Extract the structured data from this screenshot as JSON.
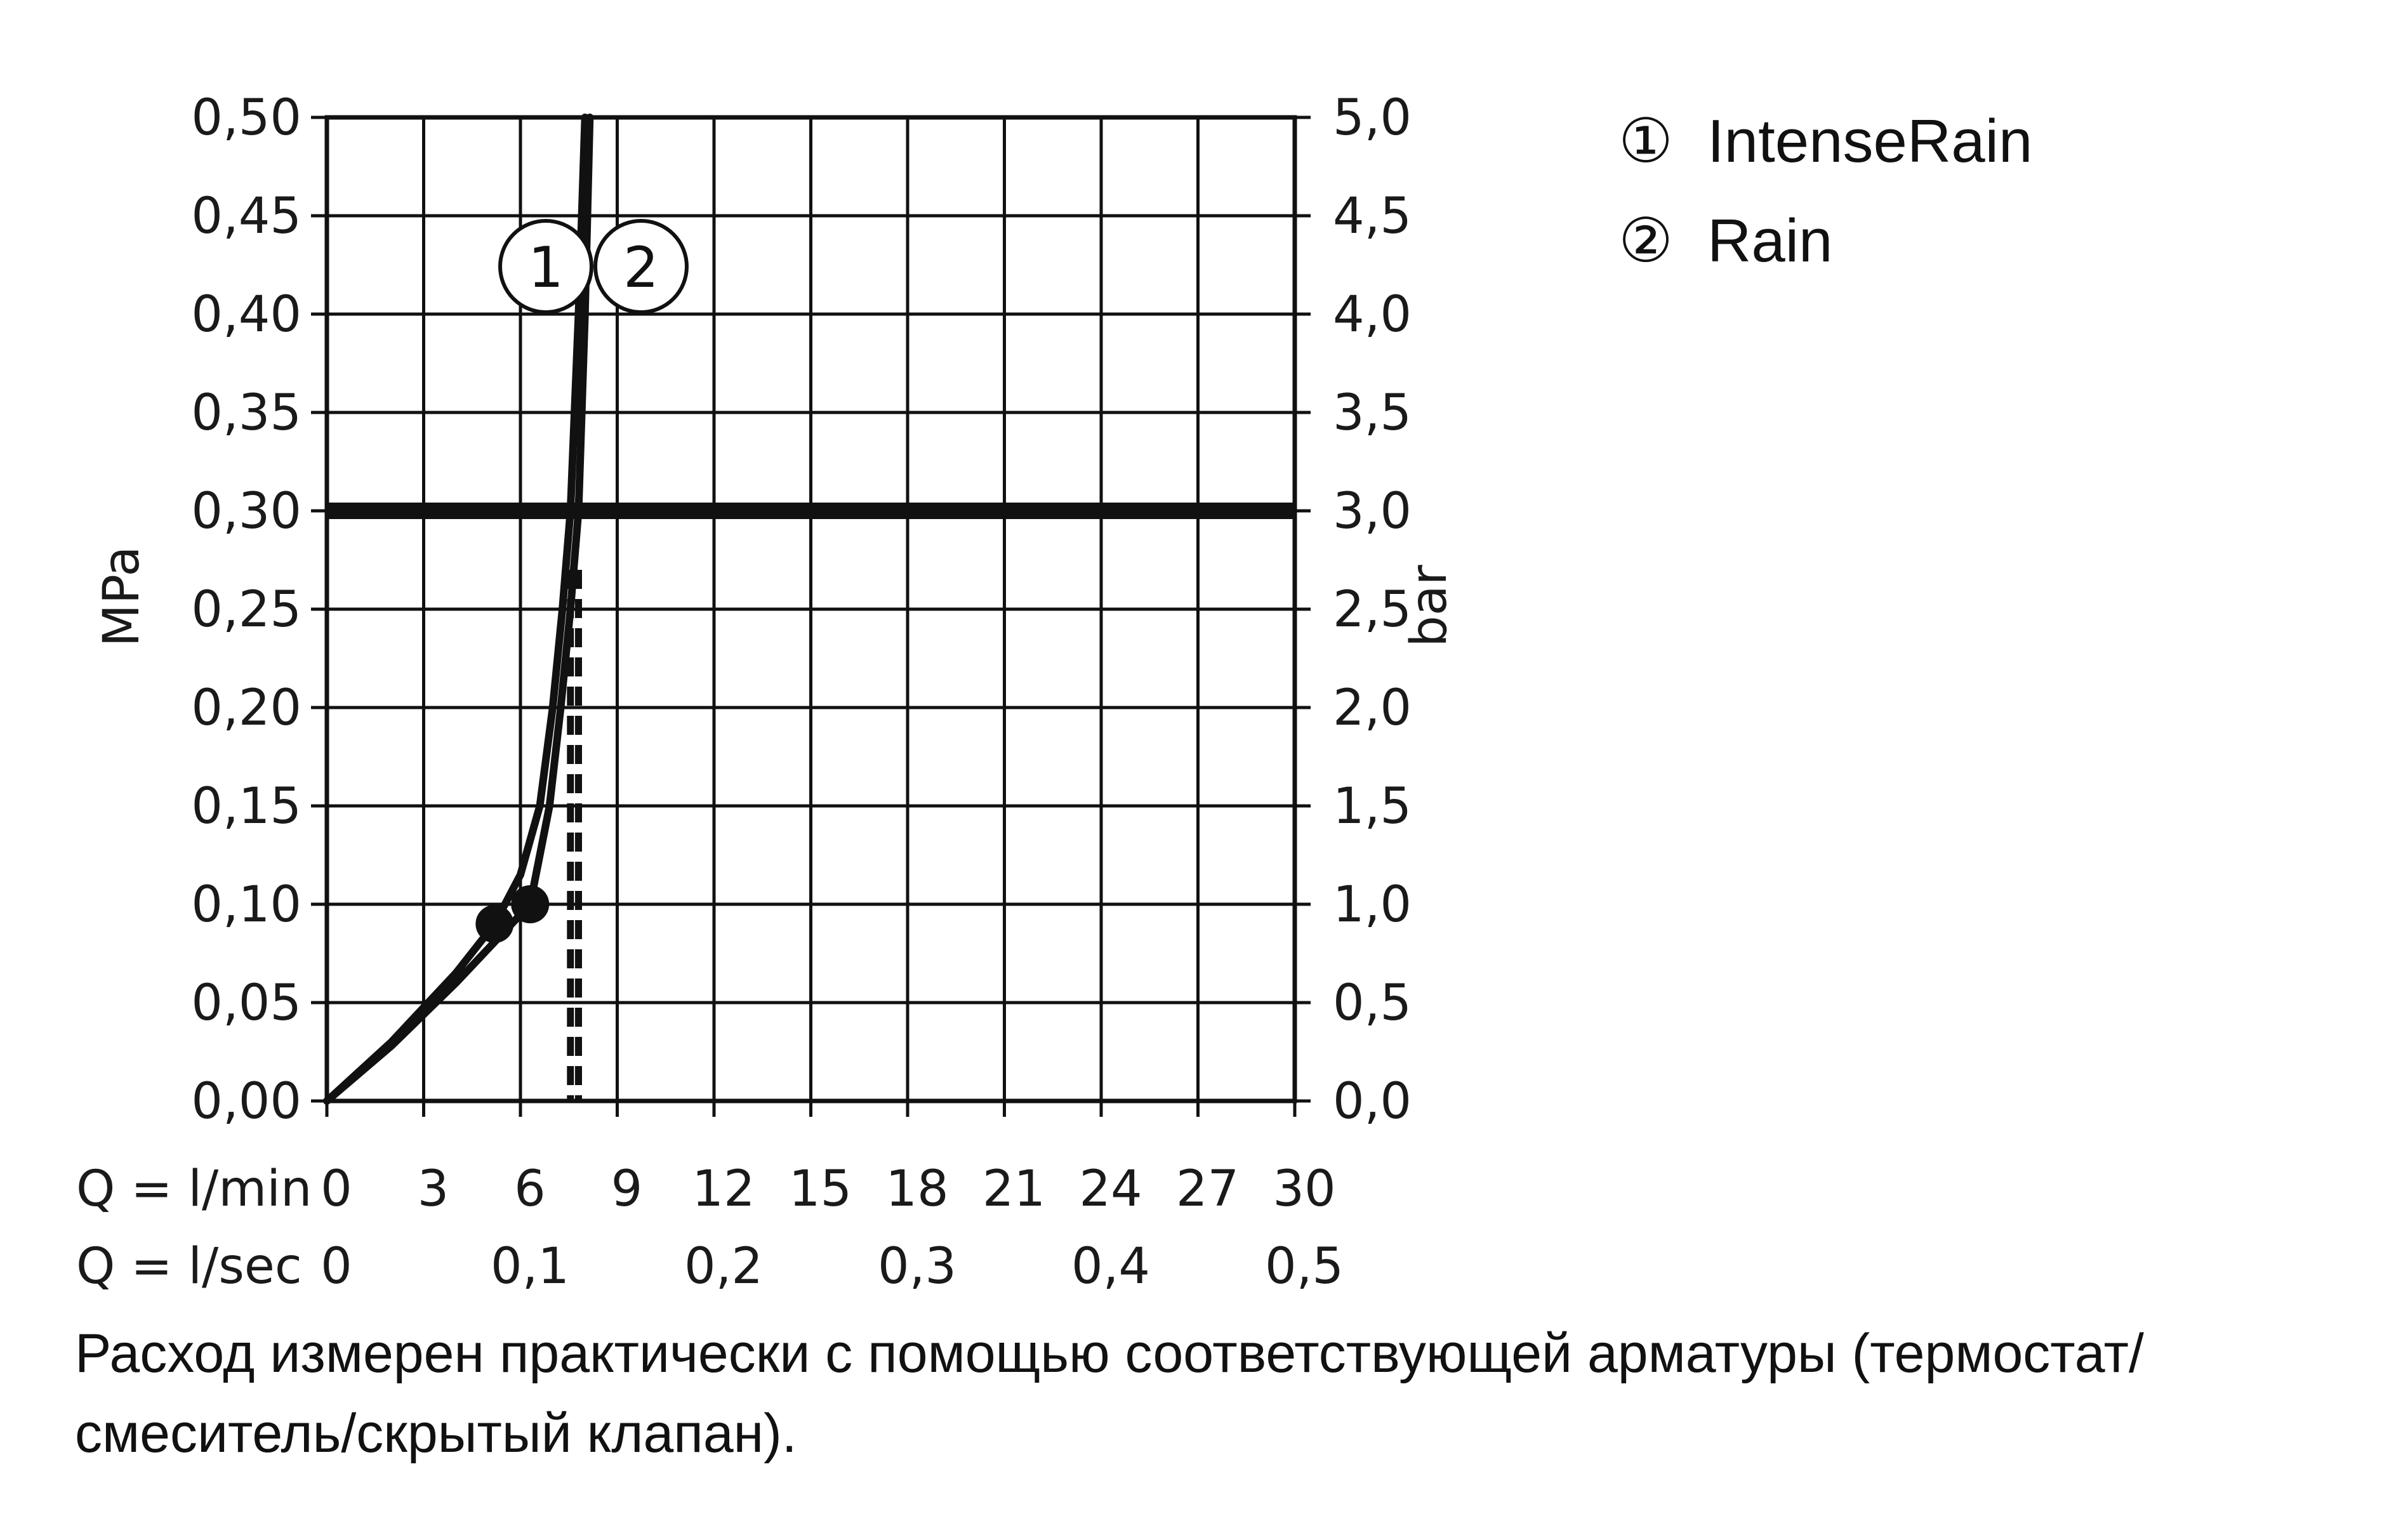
{
  "chart_data": {
    "type": "line",
    "y_left": {
      "label": "MPa",
      "ticks": [
        "0,00",
        "0,05",
        "0,10",
        "0,15",
        "0,20",
        "0,25",
        "0,30",
        "0,35",
        "0,40",
        "0,45",
        "0,50"
      ],
      "range": [
        0,
        0.5
      ]
    },
    "y_right": {
      "label": "bar",
      "ticks": [
        "0,0",
        "0,5",
        "1,0",
        "1,5",
        "2,0",
        "2,5",
        "3,0",
        "3,5",
        "4,0",
        "4,5",
        "5,0"
      ],
      "range": [
        0,
        5
      ]
    },
    "x_lmin": {
      "label": "Q = l/min",
      "ticks": [
        "0",
        "3",
        "6",
        "9",
        "12",
        "15",
        "18",
        "21",
        "24",
        "27",
        "30"
      ],
      "range": [
        0,
        30
      ]
    },
    "x_lsec": {
      "label": "Q = l/sec",
      "ticks": [
        "0",
        "0,1",
        "0,2",
        "0,3",
        "0,4",
        "0,5"
      ]
    },
    "reference_line_mpa": 0.3,
    "grid": true,
    "legend_position": "top-right",
    "series": [
      {
        "name": "IntenseRain",
        "marker": "1",
        "x": [
          0,
          2,
          4,
          5.2,
          6,
          6.6,
          7,
          7.3,
          7.55,
          7.8,
          8.0
        ],
        "y": [
          0,
          0.03,
          0.065,
          0.09,
          0.115,
          0.15,
          0.2,
          0.25,
          0.3,
          0.4,
          0.5
        ],
        "point": [
          5.2,
          0.09
        ],
        "dashed_x": 7.8
      },
      {
        "name": "Rain",
        "marker": "2",
        "x": [
          0,
          2,
          4,
          6.3,
          6.9,
          7.25,
          7.55,
          7.8,
          8.0,
          8.15
        ],
        "y": [
          0,
          0.028,
          0.06,
          0.1,
          0.15,
          0.2,
          0.25,
          0.3,
          0.4,
          0.5
        ],
        "point": [
          6.3,
          0.1
        ],
        "dashed_x": 7.55
      }
    ]
  },
  "legend": {
    "items": [
      {
        "symbol": "①",
        "label": "IntenseRain"
      },
      {
        "symbol": "②",
        "label": "Rain"
      }
    ]
  },
  "footnote": "Расход измерен практически с помощью соответствующей арматуры (термостат/\nсмеситель/скрытый клапан)."
}
